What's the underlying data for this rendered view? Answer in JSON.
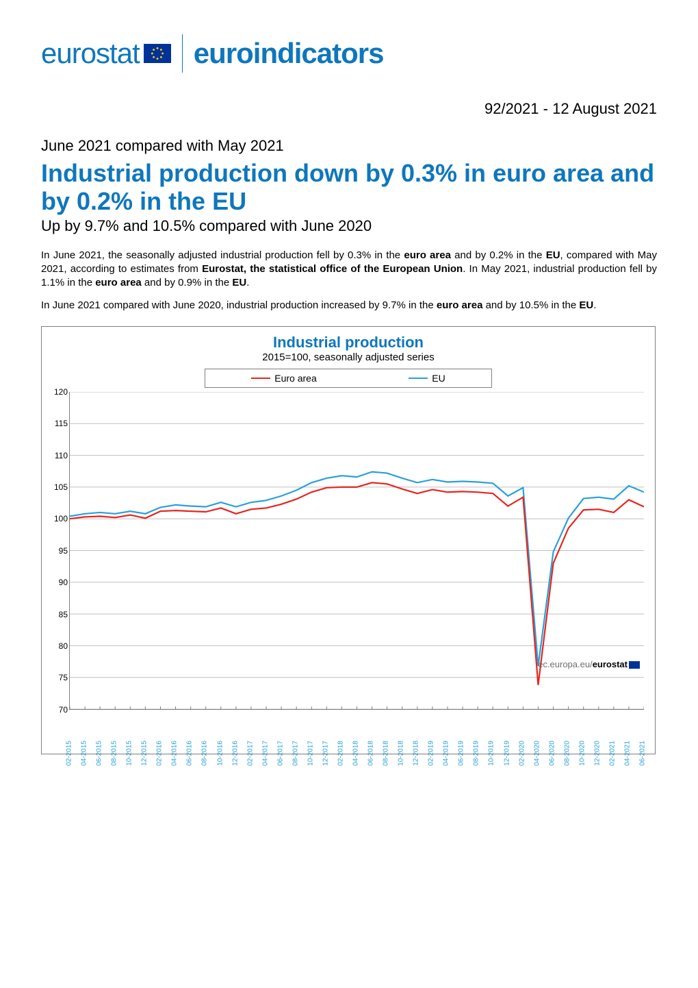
{
  "logo": {
    "eurostat_text": "eurostat",
    "euroindicators_text": "euroindicators"
  },
  "issue": {
    "number": "92/2021",
    "separator": " - ",
    "date": "12 August 2021"
  },
  "pre_title": "June 2021 compared with May 2021",
  "main_title": "Industrial production down by 0.3% in euro area and by 0.2% in the EU",
  "sub_title": "Up by 9.7% and 10.5% compared with June 2020",
  "para1_html": "In June 2021, the seasonally adjusted industrial production fell by 0.3% in the <b>euro area</b> and by 0.2% in the <b>EU</b>, compared with May 2021, according to estimates from <b>Eurostat, the statistical office of the European Union</b>. In May 2021, industrial production fell by 1.1% in the <b>euro area</b> and by 0.9% in the <b>EU</b>.",
  "para2_html": "In June 2021 compared with June 2020, industrial production increased by 9.7% in the <b>euro area</b> and by 10.5% in the <b>EU</b>.",
  "chart": {
    "type": "line",
    "title": "Industrial production",
    "subtitle": "2015=100, seasonally adjusted series",
    "legend": [
      {
        "label": "Euro area",
        "color": "#e52620"
      },
      {
        "label": "EU",
        "color": "#2aa0d8"
      }
    ],
    "ylim": [
      70,
      120
    ],
    "ytick_step": 5,
    "gridline_color": "#bfbfbf",
    "axis_color": "#7f7f7f",
    "background_color": "#ffffff",
    "line_width": 2.2,
    "title_fontsize": 22,
    "title_color": "#0e77bc",
    "subtitle_fontsize": 15,
    "x_label_color": "#2aa0d8",
    "x_label_fontsize": 10,
    "x_label_rotation_deg": -90,
    "x_categories": [
      "02-2015",
      "04-2015",
      "06-2015",
      "08-2015",
      "10-2015",
      "12-2015",
      "02-2016",
      "04-2016",
      "06-2016",
      "08-2016",
      "10-2016",
      "12-2016",
      "02-2017",
      "04-2017",
      "06-2017",
      "08-2017",
      "10-2017",
      "12-2017",
      "02-2018",
      "04-2018",
      "06-2018",
      "08-2018",
      "10-2018",
      "12-2018",
      "02-2019",
      "04-2019",
      "06-2019",
      "08-2019",
      "10-2019",
      "12-2019",
      "02-2020",
      "04-2020",
      "06-2020",
      "08-2020",
      "10-2020",
      "12-2020",
      "02-2021",
      "04-2021",
      "06-2021"
    ],
    "series": {
      "euro_area": {
        "color": "#e52620",
        "values": [
          100.0,
          100.3,
          100.4,
          100.2,
          100.6,
          100.1,
          101.2,
          101.3,
          101.2,
          101.1,
          101.7,
          100.8,
          101.5,
          101.7,
          102.3,
          103.1,
          104.2,
          104.9,
          105.0,
          105.0,
          105.7,
          105.5,
          104.7,
          104.0,
          104.6,
          104.2,
          104.3,
          104.2,
          104.0,
          102.0,
          103.4,
          73.8,
          93.0,
          98.5,
          101.4,
          101.5,
          101.0,
          103.0,
          101.9
        ]
      },
      "eu": {
        "color": "#2aa0d8",
        "values": [
          100.4,
          100.8,
          101.0,
          100.8,
          101.2,
          100.8,
          101.8,
          102.2,
          102.0,
          101.9,
          102.6,
          101.9,
          102.6,
          102.9,
          103.6,
          104.5,
          105.7,
          106.4,
          106.8,
          106.6,
          107.4,
          107.2,
          106.4,
          105.7,
          106.2,
          105.8,
          105.9,
          105.8,
          105.6,
          103.6,
          104.9,
          76.8,
          94.8,
          100.1,
          103.2,
          103.4,
          103.1,
          105.2,
          104.2
        ]
      }
    },
    "watermark_html": "ec.europa.eu/<b>eurostat</b>"
  }
}
